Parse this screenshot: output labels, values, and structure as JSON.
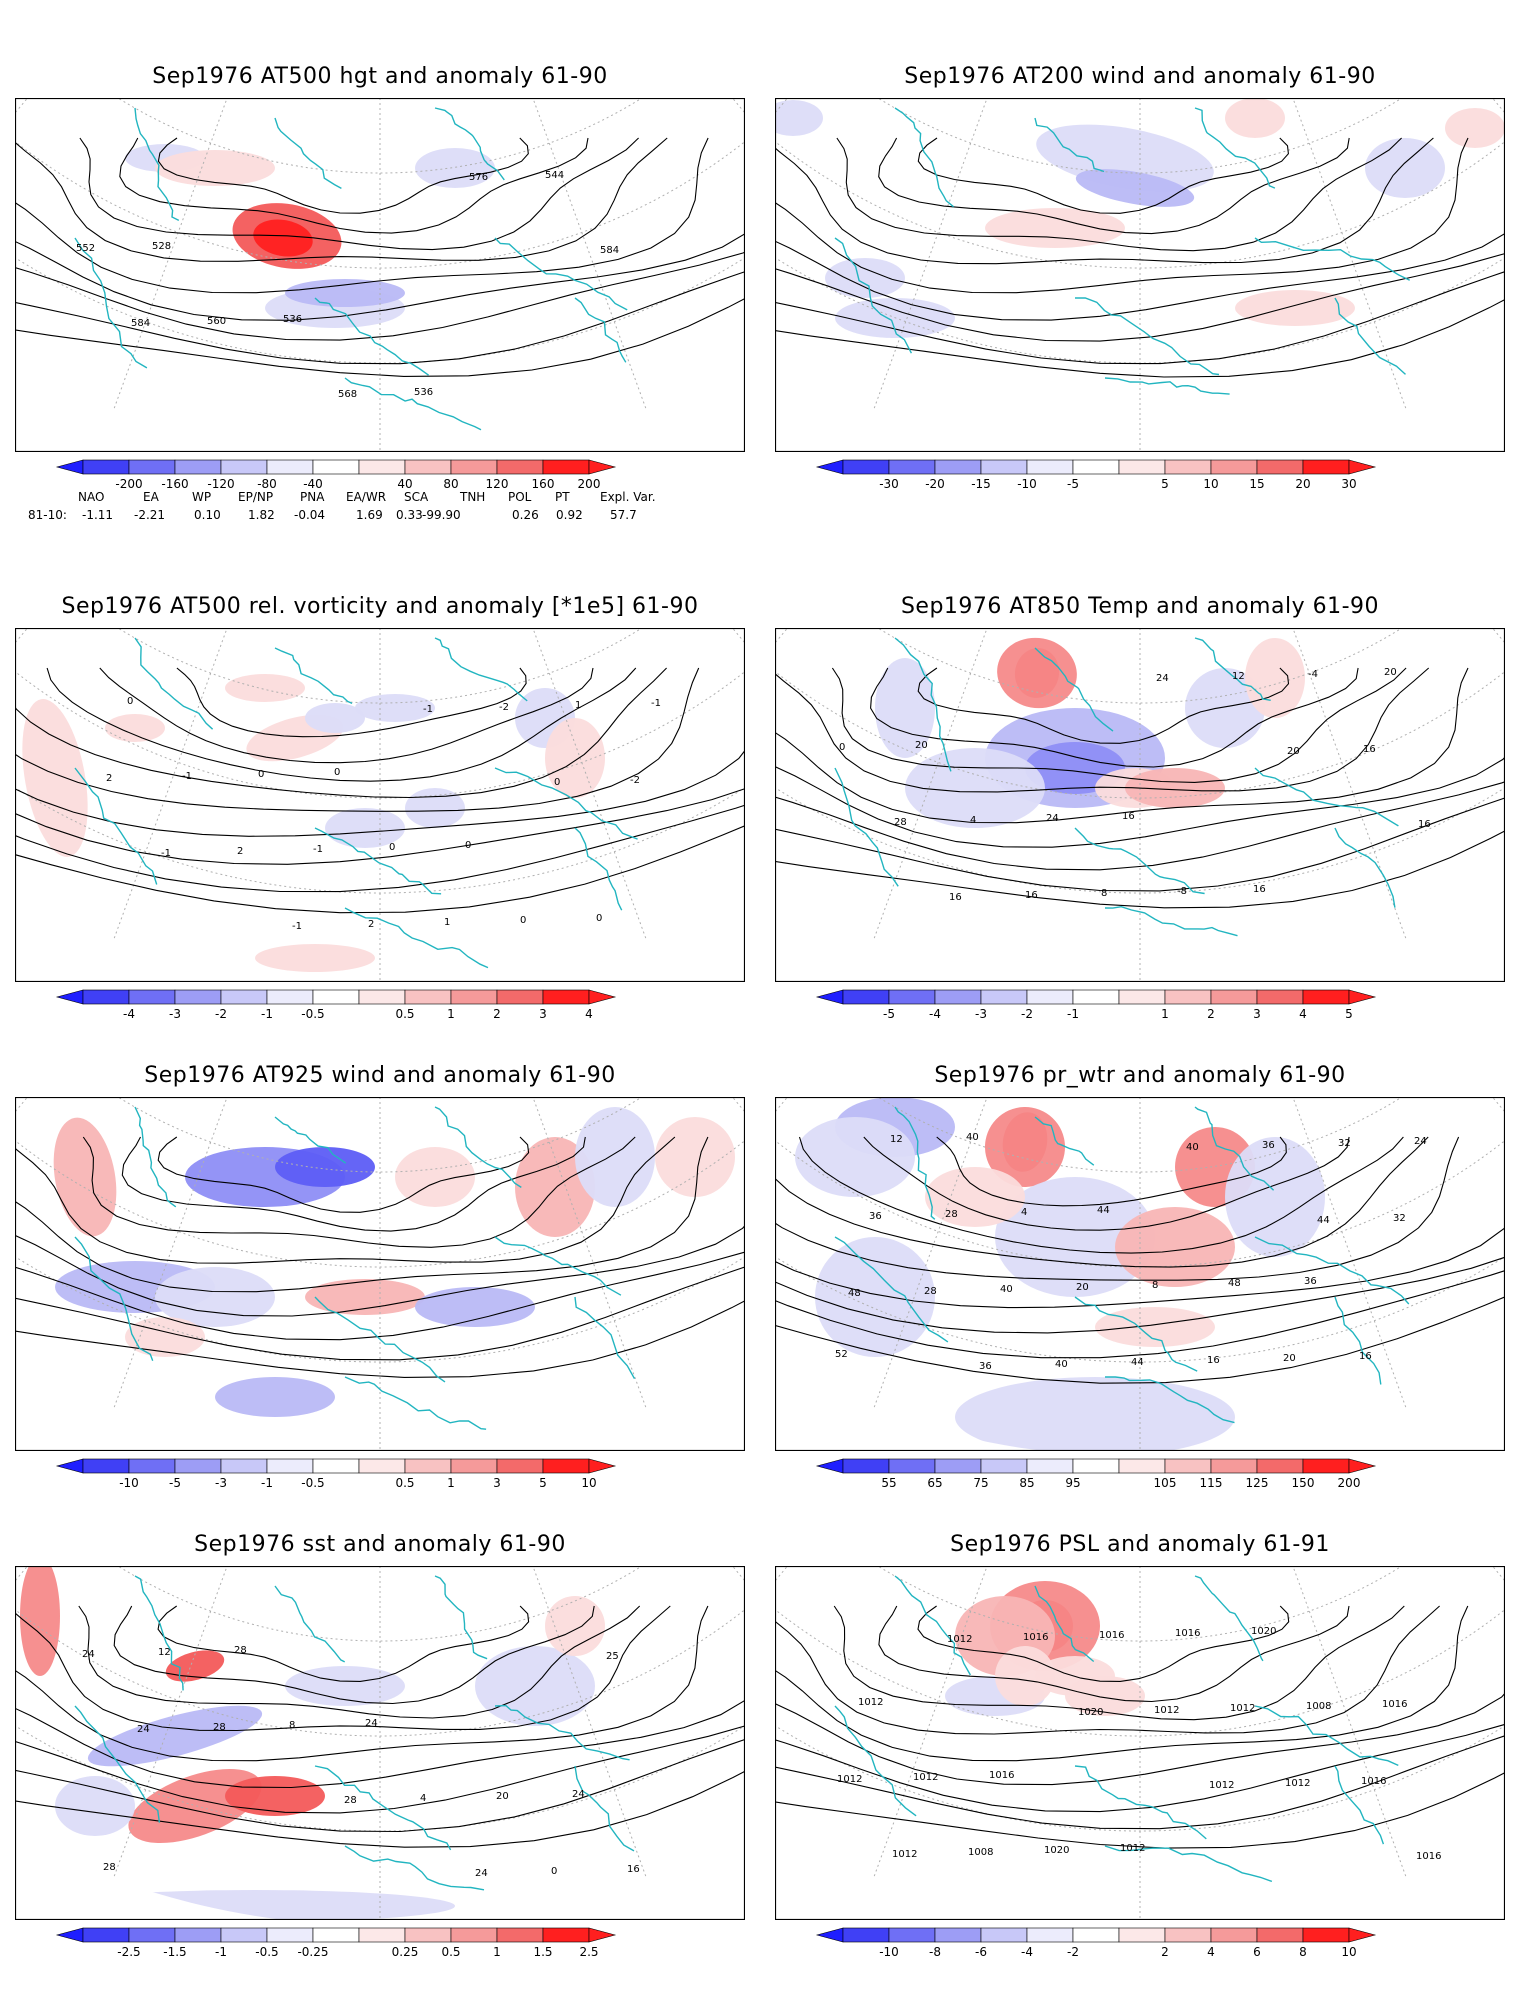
{
  "panels": [
    {
      "id": "p1",
      "title": "Sep1976 AT500 hgt and anomaly 61-90",
      "contour_labels": [
        "528",
        "536",
        "536",
        "544",
        "552",
        "560",
        "568",
        "576",
        "584",
        "584"
      ],
      "colorbar": {
        "labels": [
          "-200",
          "-160",
          "-120",
          "-80",
          "-40",
          "40",
          "80",
          "120",
          "160",
          "200"
        ]
      }
    },
    {
      "id": "p2",
      "title": "Sep1976 AT200 wind and anomaly 61-90",
      "contour_labels": [],
      "colorbar": {
        "labels": [
          "-30",
          "-20",
          "-15",
          "-10",
          "-5",
          "5",
          "10",
          "15",
          "20",
          "30"
        ]
      }
    },
    {
      "id": "p3",
      "title": "Sep1976 AT500 rel. vorticity and anomaly [*1e5] 61-90",
      "contour_labels": [
        "0",
        "0",
        "0",
        "0",
        "0",
        "0",
        "0",
        "-1",
        "-1",
        "-1",
        "1",
        "1",
        "2",
        "2",
        "2",
        "-2",
        "-2",
        "-1",
        "-1",
        "-1",
        "0"
      ],
      "colorbar": {
        "labels": [
          "-4",
          "-3",
          "-2",
          "-1",
          "-0.5",
          "0.5",
          "1",
          "2",
          "3",
          "4"
        ]
      }
    },
    {
      "id": "p4",
      "title": "Sep1976 AT850 Temp and anomaly 61-90",
      "contour_labels": [
        "16",
        "16",
        "20",
        "20",
        "24",
        "-8",
        "-4",
        "0",
        "4",
        "8",
        "12",
        "16",
        "28",
        "16",
        "24",
        "20",
        "16",
        "16"
      ],
      "colorbar": {
        "labels": [
          "-5",
          "-4",
          "-3",
          "-2",
          "-1",
          "1",
          "2",
          "3",
          "4",
          "5"
        ]
      }
    },
    {
      "id": "p5",
      "title": "Sep1976 AT925 wind and anomaly 61-90",
      "contour_labels": [],
      "colorbar": {
        "labels": [
          "-10",
          "-5",
          "-3",
          "-1",
          "-0.5",
          "0.5",
          "1",
          "3",
          "5",
          "10"
        ]
      }
    },
    {
      "id": "p6",
      "title": "Sep1976 pr_wtr and anomaly 61-90",
      "contour_labels": [
        "36",
        "52",
        "40",
        "44",
        "48",
        "16",
        "12",
        "4",
        "8",
        "20",
        "24",
        "28",
        "20",
        "16",
        "32",
        "36",
        "40",
        "44",
        "36",
        "32",
        "28",
        "40",
        "40",
        "44",
        "48",
        "36"
      ],
      "colorbar": {
        "labels": [
          "55",
          "65",
          "75",
          "85",
          "95",
          "105",
          "115",
          "125",
          "150",
          "200"
        ]
      }
    },
    {
      "id": "p7",
      "title": "Sep1976 sst and anomaly 61-90",
      "contour_labels": [
        "24",
        "28",
        "28",
        "24",
        "20",
        "16",
        "12",
        "8",
        "4",
        "0",
        "24",
        "28",
        "28",
        "24",
        "25",
        "24"
      ],
      "colorbar": {
        "labels": [
          "-2.5",
          "-1.5",
          "-1",
          "-0.5",
          "-0.25",
          "0.25",
          "0.5",
          "1",
          "1.5",
          "2.5"
        ]
      }
    },
    {
      "id": "p8",
      "title": "Sep1976 PSL and anomaly 61-91",
      "contour_labels": [
        "1012",
        "1016",
        "1012",
        "1020",
        "1016",
        "1012",
        "1020",
        "1016",
        "1008",
        "1012",
        "1008",
        "1016",
        "1012",
        "1016",
        "1012",
        "1016",
        "1012",
        "1012",
        "1016",
        "1012",
        "1020",
        "1012"
      ],
      "colorbar": {
        "labels": [
          "-10",
          "-8",
          "-6",
          "-4",
          "-2",
          "2",
          "4",
          "6",
          "8",
          "10"
        ]
      }
    }
  ],
  "teleconnections": {
    "headers": [
      "NAO",
      "EA",
      "WP",
      "EP/NP",
      "PNA",
      "EA/WR",
      "SCA",
      "TNH",
      "POL",
      "PT",
      "Expl. Var."
    ],
    "row_label": "81-10:",
    "values": [
      "-1.11",
      "-2.21",
      "0.10",
      "1.82",
      "-0.04",
      "1.69",
      "0.33",
      "-99.90",
      "0.26",
      "0.92",
      "57.7"
    ]
  },
  "colors": {
    "coast": "#22b5c0",
    "neg_strong": "#1f1fff",
    "pos_strong": "#ff1f1f",
    "contour": "#000000"
  }
}
